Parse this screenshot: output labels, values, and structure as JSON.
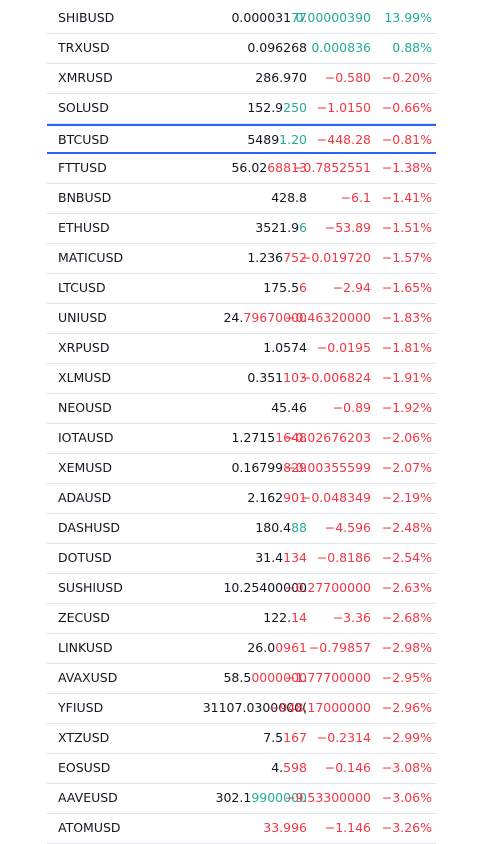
{
  "selected": 4,
  "rows": [
    {
      "symbol": "SHIBUSD",
      "price": [
        {
          "text": "0.000031",
          "color": "#131722"
        },
        {
          "text": "77",
          "color": "#22ab94"
        }
      ],
      "change": "0.00000390",
      "change_pct": "13.99%",
      "color": "#22ab94"
    },
    {
      "symbol": "TRXUSD",
      "price": [
        {
          "text": "0.096268",
          "color": "#131722"
        }
      ],
      "change": "0.000836",
      "change_pct": "0.88%",
      "color": "#22ab94"
    },
    {
      "symbol": "XMRUSD",
      "price": [
        {
          "text": "286.970",
          "color": "#131722"
        }
      ],
      "change": "−0.580",
      "change_pct": "−0.20%",
      "color": "#f23645"
    },
    {
      "symbol": "SOLUSD",
      "price": [
        {
          "text": "152.9",
          "color": "#131722"
        },
        {
          "text": "250",
          "color": "#22ab94"
        }
      ],
      "change": "−1.0150",
      "change_pct": "−0.66%",
      "color": "#f23645"
    },
    {
      "symbol": "BTCUSD",
      "price": [
        {
          "text": "5489",
          "color": "#131722"
        },
        {
          "text": "1.20",
          "color": "#22ab94"
        }
      ],
      "change": "−448.28",
      "change_pct": "−0.81%",
      "color": "#f23645"
    },
    {
      "symbol": "FTTUSD",
      "price": [
        {
          "text": "56.02",
          "color": "#131722"
        },
        {
          "text": "68813",
          "color": "#f23645"
        }
      ],
      "change": "−0.7852551",
      "change_pct": "−1.38%",
      "color": "#f23645"
    },
    {
      "symbol": "BNBUSD",
      "price": [
        {
          "text": "428.8",
          "color": "#131722"
        }
      ],
      "change": "−6.1",
      "change_pct": "−1.41%",
      "color": "#f23645"
    },
    {
      "symbol": "ETHUSD",
      "price": [
        {
          "text": "3521.9",
          "color": "#131722"
        },
        {
          "text": "6",
          "color": "#22ab94"
        }
      ],
      "change": "−53.89",
      "change_pct": "−1.51%",
      "color": "#f23645"
    },
    {
      "symbol": "MATICUSD",
      "price": [
        {
          "text": "1.236",
          "color": "#131722"
        },
        {
          "text": "752",
          "color": "#f23645"
        }
      ],
      "change": "−0.019720",
      "change_pct": "−1.57%",
      "color": "#f23645"
    },
    {
      "symbol": "LTCUSD",
      "price": [
        {
          "text": "175.5",
          "color": "#131722"
        },
        {
          "text": "6",
          "color": "#f23645"
        }
      ],
      "change": "−2.94",
      "change_pct": "−1.65%",
      "color": "#f23645"
    },
    {
      "symbol": "UNIUSD",
      "price": [
        {
          "text": "24.",
          "color": "#131722"
        },
        {
          "text": "79670000",
          "color": "#f23645"
        }
      ],
      "change": "−0.46320000",
      "change_pct": "−1.83%",
      "color": "#f23645"
    },
    {
      "symbol": "XRPUSD",
      "price": [
        {
          "text": "1.0574",
          "color": "#131722"
        }
      ],
      "change": "−0.0195",
      "change_pct": "−1.81%",
      "color": "#f23645"
    },
    {
      "symbol": "XLMUSD",
      "price": [
        {
          "text": "0.351",
          "color": "#131722"
        },
        {
          "text": "103",
          "color": "#f23645"
        }
      ],
      "change": "−0.006824",
      "change_pct": "−1.91%",
      "color": "#f23645"
    },
    {
      "symbol": "NEOUSD",
      "price": [
        {
          "text": "45.46",
          "color": "#131722"
        }
      ],
      "change": "−0.89",
      "change_pct": "−1.92%",
      "color": "#f23645"
    },
    {
      "symbol": "IOTAUSD",
      "price": [
        {
          "text": "1.2715",
          "color": "#131722"
        },
        {
          "text": "1648",
          "color": "#f23645"
        }
      ],
      "change": "−0.02676203",
      "change_pct": "−2.06%",
      "color": "#f23645"
    },
    {
      "symbol": "XEMUSD",
      "price": [
        {
          "text": "0.16799",
          "color": "#131722"
        },
        {
          "text": "829",
          "color": "#f23645"
        }
      ],
      "change": "−0.00355599",
      "change_pct": "−2.07%",
      "color": "#f23645"
    },
    {
      "symbol": "ADAUSD",
      "price": [
        {
          "text": "2.162",
          "color": "#131722"
        },
        {
          "text": "901",
          "color": "#f23645"
        }
      ],
      "change": "−0.048349",
      "change_pct": "−2.19%",
      "color": "#f23645"
    },
    {
      "symbol": "DASHUSD",
      "price": [
        {
          "text": "180.4",
          "color": "#131722"
        },
        {
          "text": "88",
          "color": "#22ab94"
        }
      ],
      "change": "−4.596",
      "change_pct": "−2.48%",
      "color": "#f23645"
    },
    {
      "symbol": "DOTUSD",
      "price": [
        {
          "text": "31.4",
          "color": "#131722"
        },
        {
          "text": "134",
          "color": "#f23645"
        }
      ],
      "change": "−0.8186",
      "change_pct": "−2.54%",
      "color": "#f23645"
    },
    {
      "symbol": "SUSHIUSD",
      "price": [
        {
          "text": "10.25400000",
          "color": "#131722"
        }
      ],
      "change": "−0.27700000",
      "change_pct": "−2.63%",
      "color": "#f23645"
    },
    {
      "symbol": "ZECUSD",
      "price": [
        {
          "text": "122.",
          "color": "#131722"
        },
        {
          "text": "14",
          "color": "#f23645"
        }
      ],
      "change": "−3.36",
      "change_pct": "−2.68%",
      "color": "#f23645"
    },
    {
      "symbol": "LINKUSD",
      "price": [
        {
          "text": "26.0",
          "color": "#131722"
        },
        {
          "text": "0961",
          "color": "#f23645"
        }
      ],
      "change": "−0.79857",
      "change_pct": "−2.98%",
      "color": "#f23645"
    },
    {
      "symbol": "AVAXUSD",
      "price": [
        {
          "text": "58.5",
          "color": "#131722"
        },
        {
          "text": "0000000",
          "color": "#f23645"
        }
      ],
      "change": "−1.77700000",
      "change_pct": "−2.95%",
      "color": "#f23645"
    },
    {
      "symbol": "YFIUSD",
      "price": [
        {
          "text": "31107.0300000(",
          "color": "#131722"
        }
      ],
      "change": "−948.17000000",
      "change_pct": "−2.96%",
      "color": "#f23645"
    },
    {
      "symbol": "XTZUSD",
      "price": [
        {
          "text": "7.5",
          "color": "#131722"
        },
        {
          "text": "167",
          "color": "#f23645"
        }
      ],
      "change": "−0.2314",
      "change_pct": "−2.99%",
      "color": "#f23645"
    },
    {
      "symbol": "EOSUSD",
      "price": [
        {
          "text": "4.",
          "color": "#131722"
        },
        {
          "text": "598",
          "color": "#f23645"
        }
      ],
      "change": "−0.146",
      "change_pct": "−3.08%",
      "color": "#f23645"
    },
    {
      "symbol": "AAVEUSD",
      "price": [
        {
          "text": "302.1",
          "color": "#131722"
        },
        {
          "text": "9900000",
          "color": "#22ab94"
        }
      ],
      "change": "−9.53300000",
      "change_pct": "−3.06%",
      "color": "#f23645"
    },
    {
      "symbol": "ATOMUSD",
      "price": [
        {
          "text": "33.996",
          "color": "#f23645"
        }
      ],
      "change": "−1.146",
      "change_pct": "−3.26%",
      "color": "#f23645"
    }
  ]
}
